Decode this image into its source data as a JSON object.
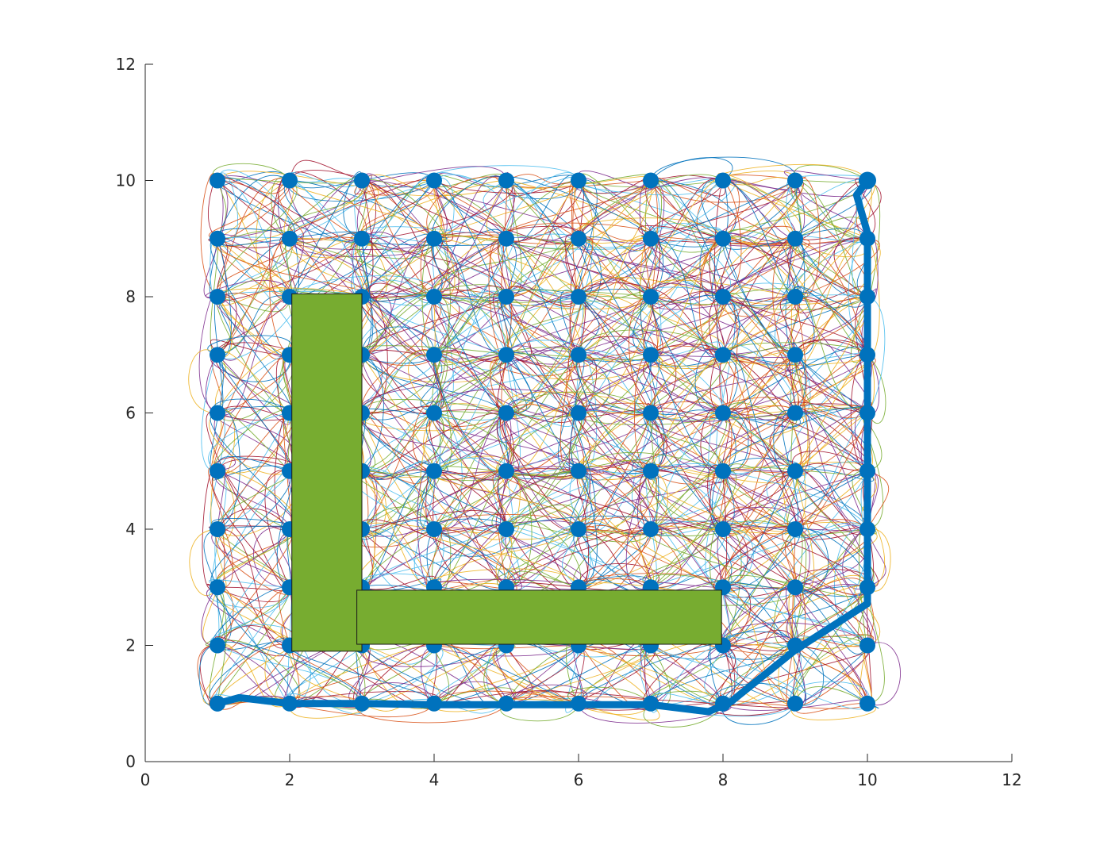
{
  "chart_data": {
    "type": "scatter",
    "title": "",
    "xlabel": "",
    "ylabel": "",
    "xlim": [
      0,
      12
    ],
    "ylim": [
      0,
      12
    ],
    "xticks": [
      "0",
      "2",
      "4",
      "6",
      "8",
      "10",
      "12"
    ],
    "yticks": [
      "0",
      "2",
      "4",
      "6",
      "8",
      "10",
      "12"
    ],
    "grid": false,
    "legend": "none",
    "nodes": [
      [
        1,
        10
      ],
      [
        2,
        10
      ],
      [
        3,
        10
      ],
      [
        4,
        10
      ],
      [
        5,
        10
      ],
      [
        6,
        10
      ],
      [
        7,
        10
      ],
      [
        8,
        10
      ],
      [
        9,
        10
      ],
      [
        10,
        10
      ],
      [
        1,
        9
      ],
      [
        2,
        9
      ],
      [
        3,
        9
      ],
      [
        4,
        9
      ],
      [
        5,
        9
      ],
      [
        6,
        9
      ],
      [
        7,
        9
      ],
      [
        8,
        9
      ],
      [
        9,
        9
      ],
      [
        10,
        9
      ],
      [
        1,
        8
      ],
      [
        2,
        8
      ],
      [
        3,
        8
      ],
      [
        4,
        8
      ],
      [
        5,
        8
      ],
      [
        6,
        8
      ],
      [
        7,
        8
      ],
      [
        8,
        8
      ],
      [
        9,
        8
      ],
      [
        10,
        8
      ],
      [
        1,
        7
      ],
      [
        2,
        7
      ],
      [
        3,
        7
      ],
      [
        4,
        7
      ],
      [
        5,
        7
      ],
      [
        6,
        7
      ],
      [
        7,
        7
      ],
      [
        8,
        7
      ],
      [
        9,
        7
      ],
      [
        10,
        7
      ],
      [
        1,
        6
      ],
      [
        2,
        6
      ],
      [
        3,
        6
      ],
      [
        4,
        6
      ],
      [
        5,
        6
      ],
      [
        6,
        6
      ],
      [
        7,
        6
      ],
      [
        8,
        6
      ],
      [
        9,
        6
      ],
      [
        10,
        6
      ],
      [
        1,
        5
      ],
      [
        2,
        5
      ],
      [
        3,
        5
      ],
      [
        4,
        5
      ],
      [
        5,
        5
      ],
      [
        6,
        5
      ],
      [
        7,
        5
      ],
      [
        8,
        5
      ],
      [
        9,
        5
      ],
      [
        10,
        5
      ],
      [
        1,
        4
      ],
      [
        2,
        4
      ],
      [
        3,
        4
      ],
      [
        4,
        4
      ],
      [
        5,
        4
      ],
      [
        6,
        4
      ],
      [
        7,
        4
      ],
      [
        8,
        4
      ],
      [
        9,
        4
      ],
      [
        10,
        4
      ],
      [
        1,
        3
      ],
      [
        2,
        3
      ],
      [
        3,
        3
      ],
      [
        4,
        3
      ],
      [
        5,
        3
      ],
      [
        6,
        3
      ],
      [
        7,
        3
      ],
      [
        8,
        3
      ],
      [
        9,
        3
      ],
      [
        10,
        3
      ],
      [
        1,
        2
      ],
      [
        2,
        2
      ],
      [
        3,
        2
      ],
      [
        4,
        2
      ],
      [
        5,
        2
      ],
      [
        6,
        2
      ],
      [
        7,
        2
      ],
      [
        8,
        2
      ],
      [
        9,
        2
      ],
      [
        10,
        2
      ],
      [
        1,
        1
      ],
      [
        2,
        1
      ],
      [
        3,
        1
      ],
      [
        4,
        1
      ],
      [
        5,
        1
      ],
      [
        6,
        1
      ],
      [
        7,
        1
      ],
      [
        8,
        1
      ],
      [
        9,
        1
      ],
      [
        10,
        1
      ]
    ],
    "obstacles": [
      {
        "x0": 2.03,
        "x1": 3.0,
        "y0": 1.9,
        "y1": 8.05,
        "color": "#77ac30"
      },
      {
        "x0": 2.93,
        "x1": 7.98,
        "y0": 2.02,
        "y1": 2.95,
        "color": "#77ac30"
      }
    ],
    "path": {
      "color": "#0072bd",
      "points": [
        [
          1,
          1
        ],
        [
          1.3,
          1.1
        ],
        [
          2,
          1.0
        ],
        [
          3,
          1.0
        ],
        [
          4,
          0.98
        ],
        [
          5,
          0.98
        ],
        [
          6,
          0.98
        ],
        [
          7,
          0.98
        ],
        [
          7.8,
          0.86
        ],
        [
          8.1,
          1.02
        ],
        [
          9,
          1.92
        ],
        [
          10,
          2.72
        ],
        [
          10,
          4
        ],
        [
          10,
          5
        ],
        [
          10,
          6
        ],
        [
          10,
          7
        ],
        [
          10,
          8
        ],
        [
          10,
          9.1
        ],
        [
          9.85,
          9.75
        ],
        [
          10,
          10
        ]
      ]
    },
    "colors": [
      "#0072bd",
      "#d95319",
      "#edb120",
      "#7e2f8e",
      "#77ac30",
      "#4dbeee",
      "#a2142f"
    ],
    "marker_color": "#0072bd"
  }
}
